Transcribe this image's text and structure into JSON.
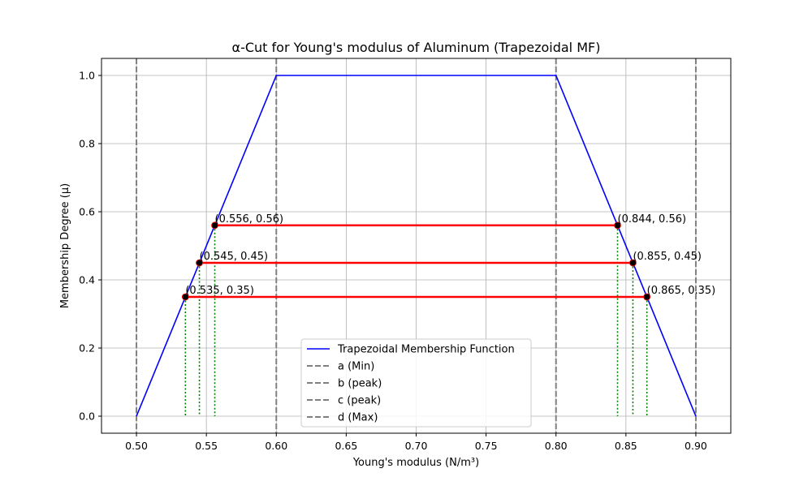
{
  "chart_data": {
    "type": "line",
    "title": "α-Cut for Young's modulus  of Aluminum (Trapezoidal MF)",
    "xlabel": "Young's modulus (N/m³)",
    "ylabel": "Membership Degree (μ)",
    "xlim": [
      0.475,
      0.925
    ],
    "ylim": [
      -0.05,
      1.05
    ],
    "xticks": [
      0.5,
      0.55,
      0.6,
      0.65,
      0.7,
      0.75,
      0.8,
      0.85,
      0.9
    ],
    "xtick_labels": [
      "0.50",
      "0.55",
      "0.60",
      "0.65",
      "0.70",
      "0.75",
      "0.80",
      "0.85",
      "0.90"
    ],
    "yticks": [
      0.0,
      0.2,
      0.4,
      0.6,
      0.8,
      1.0
    ],
    "ytick_labels": [
      "0.0",
      "0.2",
      "0.4",
      "0.6",
      "0.8",
      "1.0"
    ],
    "grid": true,
    "legend_position": "lower center",
    "colors": {
      "membership": "#0000ff",
      "alpha_cut": "#ff0000",
      "vertical_markers": "#808080",
      "drop_lines": "#008000",
      "points": "#000000"
    },
    "series": [
      {
        "name": "Trapezoidal Membership Function",
        "x": [
          0.5,
          0.6,
          0.8,
          0.9
        ],
        "y": [
          0.0,
          1.0,
          1.0,
          0.0
        ]
      }
    ],
    "reference_lines": [
      {
        "name": "a (Min)",
        "x": 0.5
      },
      {
        "name": "b (peak)",
        "x": 0.6
      },
      {
        "name": "c (peak)",
        "x": 0.8
      },
      {
        "name": "d (Max)",
        "x": 0.9
      }
    ],
    "alpha_cuts": [
      {
        "alpha": 0.56,
        "left": 0.556,
        "right": 0.844,
        "left_label": "(0.556, 0.56)",
        "right_label": "(0.844, 0.56)"
      },
      {
        "alpha": 0.45,
        "left": 0.545,
        "right": 0.855,
        "left_label": "(0.545, 0.45)",
        "right_label": "(0.855, 0.45)"
      },
      {
        "alpha": 0.35,
        "left": 0.535,
        "right": 0.865,
        "left_label": "(0.535, 0.35)",
        "right_label": "(0.865, 0.35)"
      }
    ],
    "legend": [
      "Trapezoidal Membership Function",
      "a (Min)",
      "b (peak)",
      "c (peak)",
      "d (Max)"
    ]
  }
}
